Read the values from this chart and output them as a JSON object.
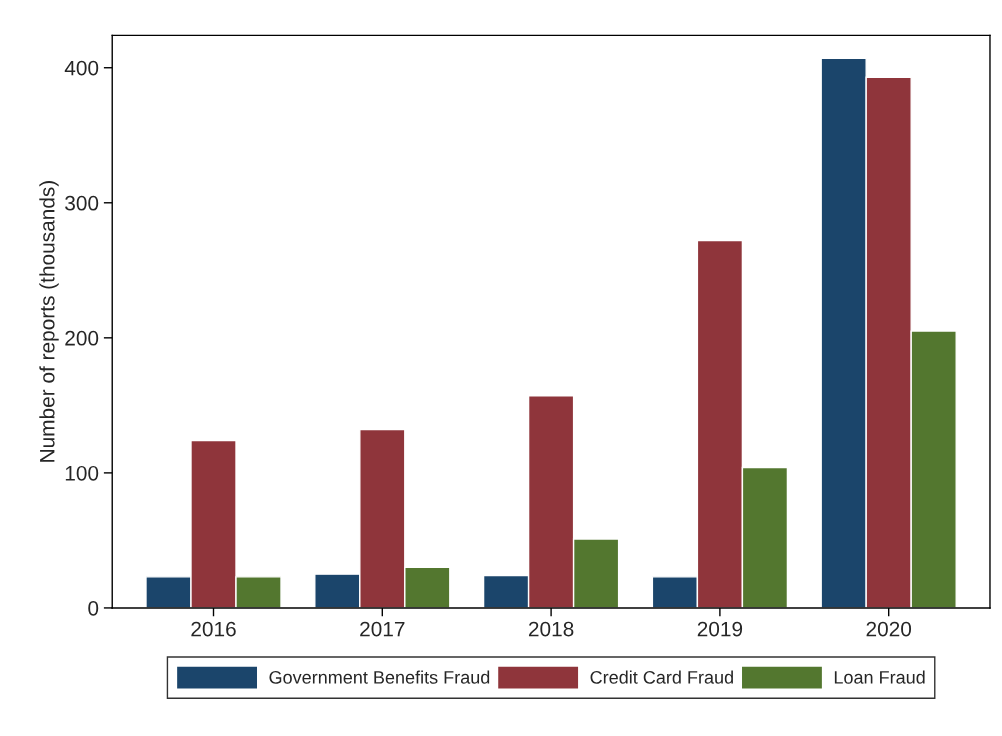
{
  "chart_data": {
    "type": "bar",
    "ylabel": "Number of reports (thousands)",
    "categories": [
      "2016",
      "2017",
      "2018",
      "2019",
      "2020"
    ],
    "series": [
      {
        "name": "Government Benefits Fraud",
        "color": "#1b456b",
        "values": [
          23,
          25,
          24,
          23,
          407
        ]
      },
      {
        "name": "Credit Card Fraud",
        "color": "#8f353b",
        "values": [
          124,
          132,
          157,
          272,
          393
        ]
      },
      {
        "name": "Loan Fraud",
        "color": "#53772f",
        "values": [
          23,
          30,
          51,
          104,
          205
        ]
      }
    ],
    "ylim": [
      0,
      424
    ],
    "yticks": [
      0,
      100,
      200,
      300,
      400
    ],
    "grid": false,
    "legend": "bottom"
  }
}
